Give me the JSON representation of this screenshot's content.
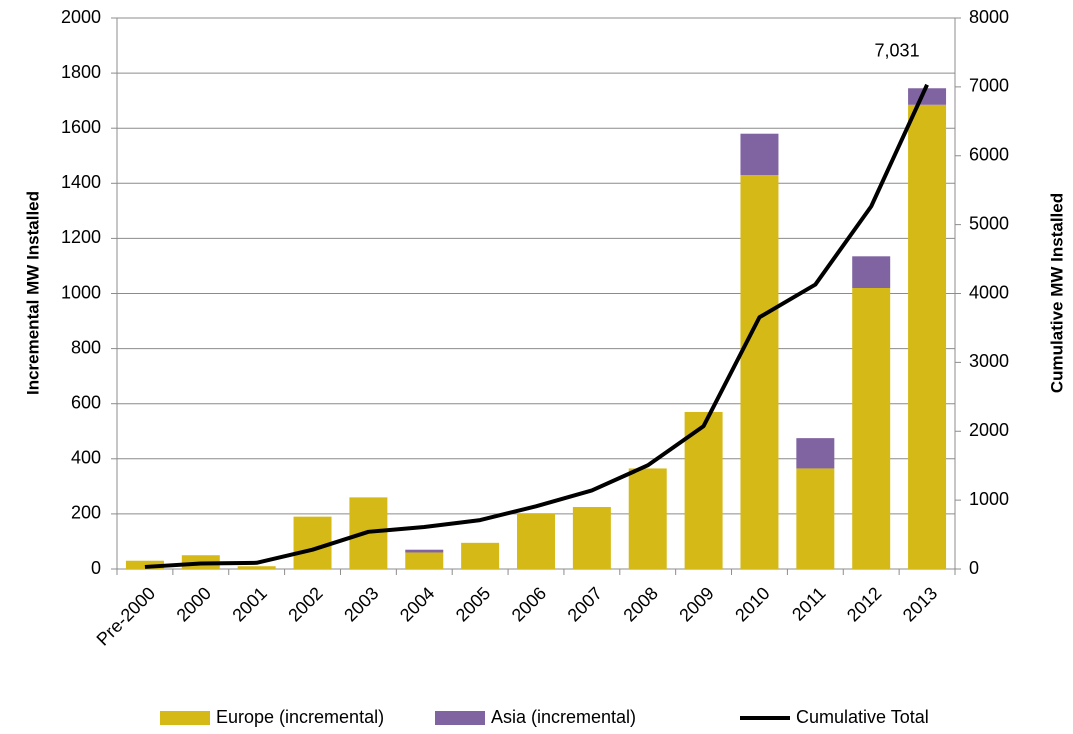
{
  "chart_data": {
    "type": "bar",
    "categories": [
      "Pre-2000",
      "2000",
      "2001",
      "2002",
      "2003",
      "2004",
      "2005",
      "2006",
      "2007",
      "2008",
      "2009",
      "2010",
      "2011",
      "2012",
      "2013"
    ],
    "series": [
      {
        "name": "Europe (incremental)",
        "color": "#d5ba17",
        "values": [
          30,
          50,
          10,
          190,
          260,
          60,
          95,
          200,
          225,
          365,
          570,
          1430,
          365,
          1020,
          1685
        ]
      },
      {
        "name": "Asia (incremental)",
        "color": "#8064a2",
        "values": [
          0,
          0,
          0,
          0,
          0,
          10,
          0,
          0,
          0,
          0,
          0,
          150,
          110,
          115,
          60
        ]
      },
      {
        "name": "Cumulative Total",
        "color": "#000000",
        "type": "line",
        "axis": "y2",
        "values": [
          30,
          80,
          90,
          280,
          540,
          610,
          710,
          910,
          1140,
          1505,
          2075,
          3655,
          4130,
          5265,
          7031
        ],
        "value_labels": [
          null,
          null,
          null,
          null,
          null,
          null,
          null,
          null,
          null,
          null,
          null,
          null,
          null,
          null,
          "7,031"
        ]
      }
    ],
    "ylabel": "Incremental MW Installed",
    "y2label": "Cumulative MW Installed",
    "ylim": [
      0,
      2000
    ],
    "yticks": [
      0,
      200,
      400,
      600,
      800,
      1000,
      1200,
      1400,
      1600,
      1800,
      2000
    ],
    "y2lim": [
      0,
      8000
    ],
    "y2ticks": [
      0,
      1000,
      2000,
      3000,
      4000,
      5000,
      6000,
      7000,
      8000
    ],
    "grid": true,
    "legend": "bottom"
  }
}
